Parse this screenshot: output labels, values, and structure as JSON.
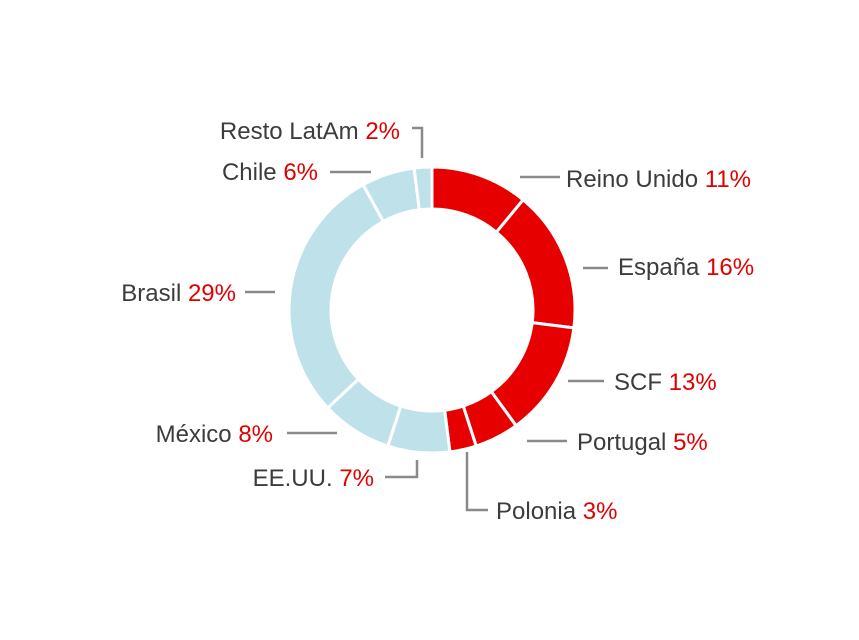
{
  "chart_data": {
    "type": "pie",
    "style": "donut",
    "colors": {
      "red": "#e60000",
      "light": "#bfe1ea"
    },
    "slices": [
      {
        "name": "Reino Unido",
        "pct_label": "11%",
        "value": 11,
        "color": "#e60000"
      },
      {
        "name": "España",
        "pct_label": "16%",
        "value": 16,
        "color": "#e60000"
      },
      {
        "name": "SCF",
        "pct_label": "13%",
        "value": 13,
        "color": "#e60000"
      },
      {
        "name": "Portugal",
        "pct_label": "5%",
        "value": 5,
        "color": "#e60000"
      },
      {
        "name": "Polonia",
        "pct_label": "3%",
        "value": 3,
        "color": "#e60000"
      },
      {
        "name": "EE.UU.",
        "pct_label": "7%",
        "value": 7,
        "color": "#bfe1ea"
      },
      {
        "name": "México",
        "pct_label": "8%",
        "value": 8,
        "color": "#bfe1ea"
      },
      {
        "name": "Brasil",
        "pct_label": "29%",
        "value": 29,
        "color": "#bfe1ea"
      },
      {
        "name": "Chile",
        "pct_label": "6%",
        "value": 6,
        "color": "#bfe1ea"
      },
      {
        "name": "Resto LatAm",
        "pct_label": "2%",
        "value": 2,
        "color": "#bfe1ea"
      }
    ]
  }
}
